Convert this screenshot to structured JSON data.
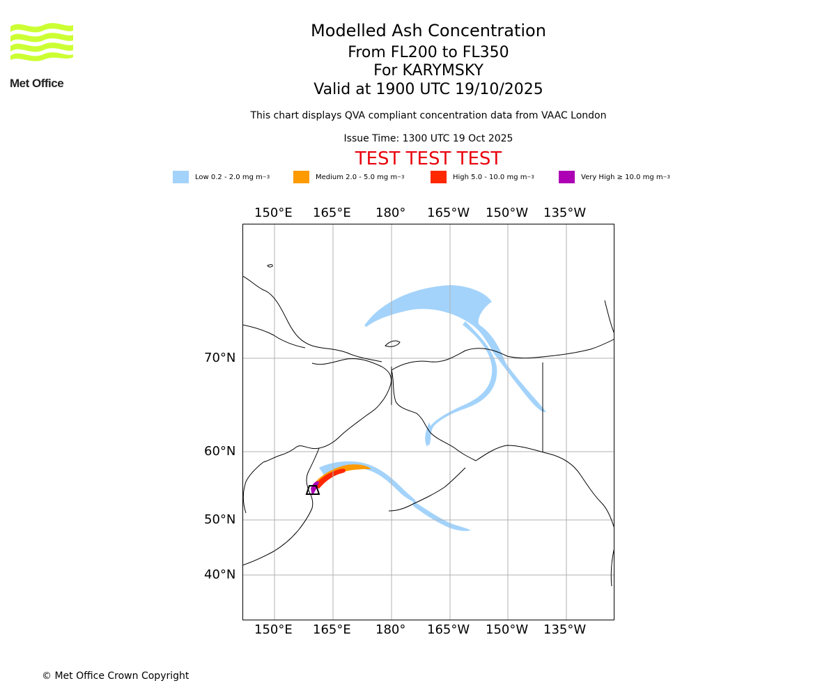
{
  "header": {
    "title": "Modelled Ash Concentration",
    "levels": "From FL200 to FL350",
    "volcano": "For KARYMSKY",
    "valid": "Valid at 1900 UTC 19/10/2025",
    "description": "This chart displays QVA compliant concentration data from VAAC London",
    "issue_time": "Issue Time: 1300 UTC 19 Oct 2025",
    "test_banner": "TEST TEST TEST"
  },
  "logo": {
    "text": "Met Office",
    "color": "#ccff33"
  },
  "legend": [
    {
      "label": "Low 0.2 - 2.0 mg m",
      "unit_sup": "−3",
      "color": "#a3d3fb"
    },
    {
      "label": "Medium 2.0 - 5.0 mg m",
      "unit_sup": "−3",
      "color": "#ff9a00"
    },
    {
      "label": "High 5.0 - 10.0 mg m",
      "unit_sup": "−3",
      "color": "#ff2800"
    },
    {
      "label": "Very High ≥ 10.0 mg m",
      "unit_sup": "−3",
      "color": "#ad00b4"
    }
  ],
  "map": {
    "lon_labels": [
      "150°E",
      "165°E",
      "180°",
      "165°W",
      "150°W",
      "135°W"
    ],
    "lat_labels": [
      "70°N",
      "60°N",
      "50°N",
      "40°N"
    ]
  },
  "footer": {
    "copyright": "© Met Office Crown Copyright"
  }
}
